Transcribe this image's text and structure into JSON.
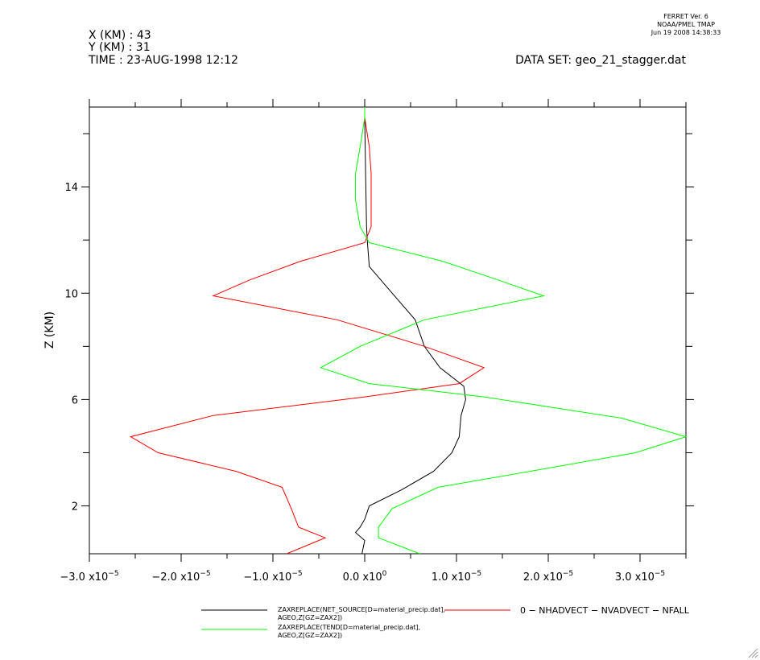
{
  "header": {
    "x_line": "X (KM) : 43",
    "y_line": "Y (KM) : 31",
    "time_line": "TIME : 23-AUG-1998 12:12",
    "dataset_line": "DATA SET: geo_21_stagger.dat",
    "ferret_version": "FERRET Ver. 6",
    "ferret_org": "NOAA/PMEL TMAP",
    "ferret_date": "Jun 19 2008 14:38:33"
  },
  "chart_data": {
    "type": "line",
    "orientation": "vertical-profile",
    "title": "",
    "xlabel": "",
    "ylabel": "Z (KM)",
    "xlim": [
      -3e-05,
      3.5e-05
    ],
    "ylim": [
      0.2,
      17.0
    ],
    "grid": false,
    "x_ticks": [
      {
        "value": -3e-05,
        "mantissa": "−3.0 x10",
        "exp": "−5"
      },
      {
        "value": -2e-05,
        "mantissa": "−2.0 x10",
        "exp": "−5"
      },
      {
        "value": -1e-05,
        "mantissa": "−1.0 x10",
        "exp": "−5"
      },
      {
        "value": 0.0,
        "mantissa": "0.0 x10",
        "exp": "0"
      },
      {
        "value": 1e-05,
        "mantissa": "1.0 x10",
        "exp": "−5"
      },
      {
        "value": 2e-05,
        "mantissa": "2.0 x10",
        "exp": "−5"
      },
      {
        "value": 3e-05,
        "mantissa": "3.0 x10",
        "exp": "−5"
      }
    ],
    "y_ticks": [
      {
        "value": 2,
        "label": "2"
      },
      {
        "value": 6,
        "label": "6"
      },
      {
        "value": 10,
        "label": "10"
      },
      {
        "value": 14,
        "label": "14"
      }
    ],
    "series": [
      {
        "name": "ZAXREPLACE(NET_SOURCE[D=material_precip.dat], AGEO,Z[GZ=ZAX2])",
        "legend_lines": [
          "ZAXREPLACE(NET_SOURCE[D=material_precip.dat],",
          "AGEO,Z[GZ=ZAX2])"
        ],
        "color": "#000000",
        "z": [
          0.2,
          0.7,
          1.0,
          1.2,
          1.5,
          2.0,
          2.6,
          3.3,
          4.0,
          4.6,
          5.4,
          6.0,
          6.5,
          7.2,
          8.0,
          9.0,
          10.0,
          11.0,
          11.9,
          12.5,
          13.5,
          14.5,
          15.5,
          16.6,
          17.0
        ],
        "x": [
          -3e-07,
          0.0,
          -1e-06,
          -5e-07,
          0.0,
          5e-07,
          4e-06,
          7.5e-06,
          9.5e-06,
          1.03e-05,
          1.05e-05,
          1.1e-05,
          1.08e-05,
          8.2e-06,
          6.5e-06,
          5.5e-06,
          3e-06,
          5e-07,
          3e-07,
          2e-07,
          1.5e-07,
          1e-07,
          5e-08,
          0.0,
          0.0
        ]
      },
      {
        "name": "0 - NHADVECT - NVADVECT - NFALL",
        "legend_lines": [
          "0 − NHADVECT − NVADVECT − NFALL"
        ],
        "color": "#ff0000",
        "z": [
          0.2,
          0.8,
          1.2,
          1.9,
          2.7,
          3.3,
          4.0,
          4.6,
          5.4,
          6.1,
          6.6,
          7.2,
          8.0,
          9.0,
          9.9,
          10.5,
          11.2,
          11.9,
          12.5,
          13.5,
          14.5,
          15.5,
          16.6,
          17.0
        ],
        "x": [
          -8.5e-06,
          -4.3e-06,
          -7.2e-06,
          -8e-06,
          -9e-06,
          -1.4e-05,
          -2.25e-05,
          -2.55e-05,
          -1.65e-05,
          0.0,
          1.03e-05,
          1.3e-05,
          6.5e-06,
          -3e-06,
          -1.65e-05,
          -1.25e-05,
          -7e-06,
          0.0,
          7e-07,
          7e-07,
          7e-07,
          5e-07,
          0.0,
          0.0
        ]
      },
      {
        "name": "ZAXREPLACE(TEND[D=material_precip.dat], AGEO,Z[GZ=ZAX2])",
        "legend_lines": [
          "ZAXREPLACE(TEND[D=material_precip.dat],",
          "AGEO,Z[GZ=ZAX2])"
        ],
        "color": "#00ff00",
        "z": [
          0.2,
          0.8,
          1.2,
          1.9,
          2.7,
          3.3,
          4.0,
          4.6,
          5.3,
          6.1,
          6.6,
          7.2,
          8.0,
          9.0,
          9.9,
          10.5,
          11.2,
          11.9,
          12.5,
          13.5,
          14.5,
          15.5,
          16.6,
          17.0
        ],
        "x": [
          6e-06,
          1.5e-06,
          1.5e-06,
          3e-06,
          8e-06,
          1.8e-05,
          2.95e-05,
          3.5e-05,
          2.8e-05,
          1.3e-05,
          5e-07,
          -4.8e-06,
          -5e-07,
          6.5e-06,
          1.95e-05,
          1.45e-05,
          8.5e-06,
          5e-07,
          -5e-07,
          -1e-06,
          -1e-06,
          -5e-07,
          0.0,
          0.0
        ]
      }
    ]
  }
}
